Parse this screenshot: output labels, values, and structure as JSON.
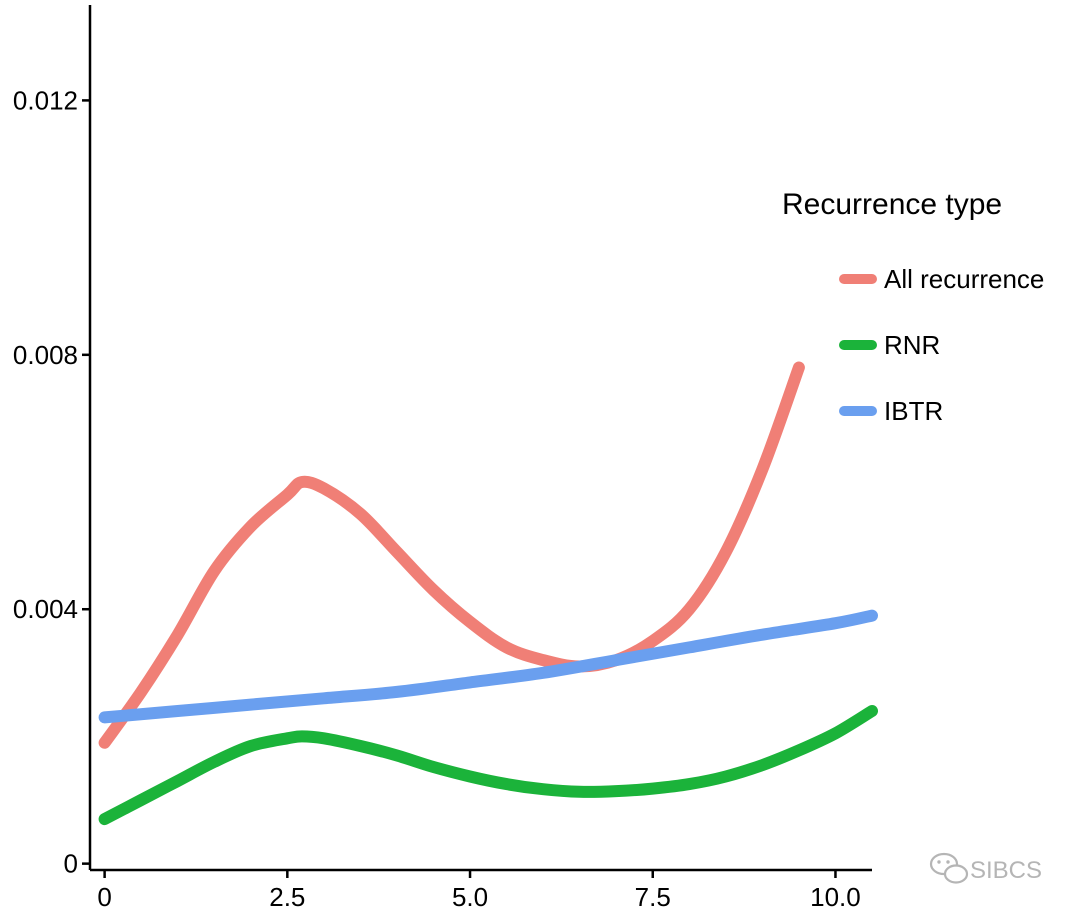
{
  "chart_data": {
    "type": "line",
    "title": "",
    "xlabel": "",
    "ylabel": "",
    "xlim": [
      -0.2,
      10.5
    ],
    "ylim": [
      -0.0001,
      0.0135
    ],
    "grid": false,
    "x_ticks": [
      0,
      2.5,
      5.0,
      7.5,
      10.0
    ],
    "x_tick_labels": [
      "0",
      "2.5",
      "5.0",
      "7.5",
      "10.0"
    ],
    "y_ticks": [
      0,
      0.004,
      0.008,
      0.012
    ],
    "y_tick_labels": [
      "0",
      "0.004",
      "0.008",
      "0.012"
    ],
    "legend": {
      "title": "Recurrence type",
      "placement": "right"
    },
    "series": [
      {
        "name": "All recurrence",
        "color": "#F07F76",
        "x": [
          0,
          0.5,
          1.0,
          1.5,
          2.0,
          2.5,
          2.7,
          3.0,
          3.5,
          4.0,
          4.5,
          5.0,
          5.5,
          6.0,
          6.5,
          7.0,
          7.5,
          8.0,
          8.5,
          9.0,
          9.5
        ],
        "y": [
          0.0019,
          0.0027,
          0.0036,
          0.0046,
          0.0053,
          0.0058,
          0.006,
          0.0059,
          0.0055,
          0.0049,
          0.0043,
          0.0038,
          0.0034,
          0.0032,
          0.0031,
          0.0032,
          0.0035,
          0.004,
          0.0049,
          0.0062,
          0.0078
        ]
      },
      {
        "name": "RNR",
        "color": "#1BB33A",
        "x": [
          0,
          0.5,
          1.0,
          1.5,
          2.0,
          2.5,
          2.7,
          3.0,
          3.5,
          4.0,
          4.5,
          5.0,
          5.5,
          6.0,
          6.5,
          7.0,
          7.5,
          8.0,
          8.5,
          9.0,
          9.5,
          10.0,
          10.5
        ],
        "y": [
          0.0007,
          0.001,
          0.0013,
          0.0016,
          0.00185,
          0.00197,
          0.002,
          0.00197,
          0.00185,
          0.0017,
          0.00152,
          0.00137,
          0.00125,
          0.00117,
          0.00113,
          0.00114,
          0.00118,
          0.00125,
          0.00137,
          0.00155,
          0.00178,
          0.00205,
          0.0024
        ]
      },
      {
        "name": "IBTR",
        "color": "#6A9FEF",
        "x": [
          0,
          1,
          2,
          3,
          4,
          5,
          6,
          7,
          8,
          9,
          10,
          10.5
        ],
        "y": [
          0.0023,
          0.0024,
          0.0025,
          0.0026,
          0.0027,
          0.00285,
          0.003,
          0.0032,
          0.0034,
          0.0036,
          0.00378,
          0.0039
        ]
      }
    ]
  },
  "watermark": {
    "icon": "wechat-icon",
    "text": "SIBCS"
  }
}
